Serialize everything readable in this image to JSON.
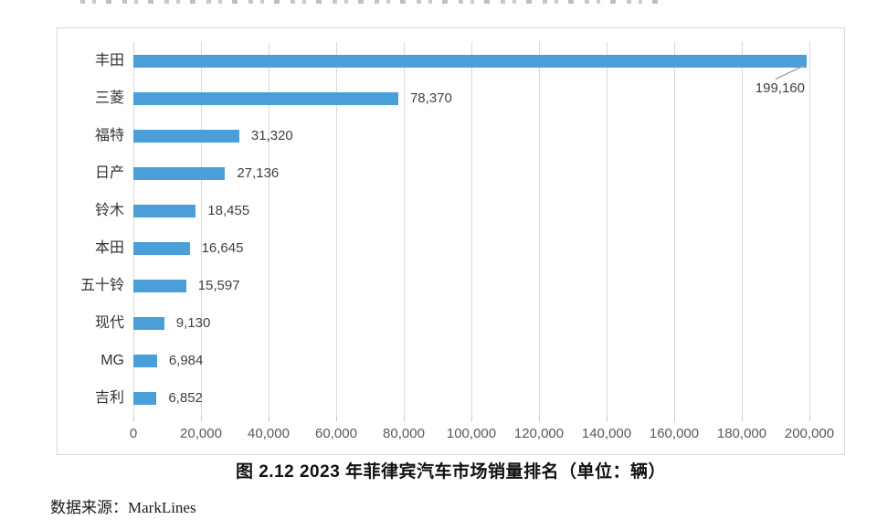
{
  "caption": "图 2.12 2023 年菲律宾汽车市场销量排名（单位：辆）",
  "source": "数据来源：MarkLines",
  "chart_data": {
    "type": "bar",
    "orientation": "horizontal",
    "title": "图 2.12 2023 年菲律宾汽车市场销量排名（单位：辆）",
    "xlabel": "",
    "ylabel": "",
    "categories": [
      "丰田",
      "三菱",
      "福特",
      "日产",
      "铃木",
      "本田",
      "五十铃",
      "现代",
      "MG",
      "吉利"
    ],
    "values": [
      199160,
      78370,
      31320,
      27136,
      18455,
      16645,
      15597,
      9130,
      6984,
      6852
    ],
    "value_labels": [
      "199,160",
      "78,370",
      "31,320",
      "27,136",
      "18,455",
      "16,645",
      "15,597",
      "9,130",
      "6,984",
      "6,852"
    ],
    "callout": {
      "index": 0,
      "label": "199,160"
    },
    "xlim": [
      0,
      200000
    ],
    "xtick_values": [
      0,
      20000,
      40000,
      60000,
      80000,
      100000,
      120000,
      140000,
      160000,
      180000,
      200000
    ],
    "xtick_labels": [
      "0",
      "20,000",
      "40,000",
      "60,000",
      "80,000",
      "100,000",
      "120,000",
      "140,000",
      "160,000",
      "180,000",
      "200,000"
    ],
    "grid": "vertical-on",
    "legend": "none",
    "bar_color": "#4A9FD8",
    "gridline_color": "#D9D9D9",
    "leader_line_color": "#A0A0A0"
  }
}
